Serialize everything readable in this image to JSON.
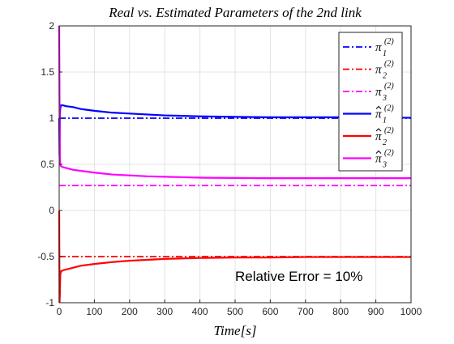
{
  "chart_data": {
    "type": "line",
    "title": "Real vs. Estimated Parameters of the 2nd link",
    "xlabel": "Time[s]",
    "ylabel": "",
    "xlim": [
      0,
      1000
    ],
    "ylim": [
      -1,
      2
    ],
    "xticks": [
      0,
      100,
      200,
      300,
      400,
      500,
      600,
      700,
      800,
      900,
      1000
    ],
    "yticks": [
      -1,
      -0.5,
      0,
      0.5,
      1,
      1.5,
      2
    ],
    "xtick_labels": [
      "0",
      "100",
      "200",
      "300",
      "400",
      "500",
      "600",
      "700",
      "800",
      "900",
      "1000"
    ],
    "ytick_labels": [
      "-1",
      "-0.5",
      "0",
      "0.5",
      "1",
      "1.5",
      "2"
    ],
    "grid": true,
    "legend_position": "top-right",
    "annotation": "Relative Error  = 10%",
    "series": [
      {
        "name": "π1(2)",
        "label_main": "π",
        "label_sub": "1",
        "label_sup": "(2)",
        "hat": false,
        "color": "#0000ff",
        "style": "dashdot",
        "x": [
          0,
          1000
        ],
        "y": [
          1.0,
          1.0
        ]
      },
      {
        "name": "π2(2)",
        "label_main": "π",
        "label_sub": "2",
        "label_sup": "(2)",
        "hat": false,
        "color": "#ff0000",
        "style": "dashdot",
        "x": [
          0,
          1000
        ],
        "y": [
          -0.5,
          -0.5
        ]
      },
      {
        "name": "π3(2)",
        "label_main": "π",
        "label_sub": "3",
        "label_sup": "(2)",
        "hat": false,
        "color": "#ff00ff",
        "style": "dashdot",
        "x": [
          0,
          1000
        ],
        "y": [
          0.27,
          0.27
        ]
      },
      {
        "name": "π̂1(2)",
        "label_main": "π",
        "label_sub": "1",
        "label_sup": "(2)",
        "hat": true,
        "color": "#0000ff",
        "style": "solid",
        "x": [
          0,
          1,
          2,
          3,
          5,
          10,
          20,
          40,
          60,
          80,
          100,
          150,
          200,
          250,
          300,
          350,
          400,
          500,
          600,
          700,
          800,
          900,
          1000
        ],
        "y": [
          1.0,
          0.6,
          1.05,
          1.1,
          1.14,
          1.14,
          1.13,
          1.12,
          1.1,
          1.09,
          1.08,
          1.06,
          1.05,
          1.04,
          1.03,
          1.025,
          1.02,
          1.015,
          1.01,
          1.01,
          1.01,
          1.005,
          1.005
        ]
      },
      {
        "name": "π̂2(2)",
        "label_main": "π",
        "label_sub": "2",
        "label_sup": "(2)",
        "hat": true,
        "color": "#ff0000",
        "style": "solid",
        "x": [
          0,
          1,
          2,
          3,
          5,
          10,
          20,
          40,
          60,
          80,
          100,
          150,
          200,
          250,
          300,
          350,
          400,
          500,
          600,
          700,
          800,
          900,
          1000
        ],
        "y": [
          0,
          -1.0,
          -0.9,
          -0.7,
          -0.66,
          -0.65,
          -0.64,
          -0.62,
          -0.6,
          -0.59,
          -0.58,
          -0.56,
          -0.545,
          -0.535,
          -0.525,
          -0.52,
          -0.515,
          -0.51,
          -0.51,
          -0.505,
          -0.505,
          -0.505,
          -0.505
        ]
      },
      {
        "name": "π̂3(2)",
        "label_main": "π",
        "label_sub": "3",
        "label_sup": "(2)",
        "hat": true,
        "color": "#ff00ff",
        "style": "solid",
        "x": [
          0,
          1,
          2,
          3,
          5,
          10,
          20,
          40,
          60,
          80,
          100,
          150,
          200,
          250,
          300,
          350,
          400,
          500,
          600,
          700,
          800,
          900,
          1000
        ],
        "y": [
          2.0,
          1.2,
          0.6,
          0.5,
          0.48,
          0.47,
          0.46,
          0.44,
          0.43,
          0.42,
          0.41,
          0.39,
          0.38,
          0.37,
          0.365,
          0.36,
          0.355,
          0.352,
          0.35,
          0.35,
          0.35,
          0.35,
          0.35
        ]
      }
    ]
  }
}
